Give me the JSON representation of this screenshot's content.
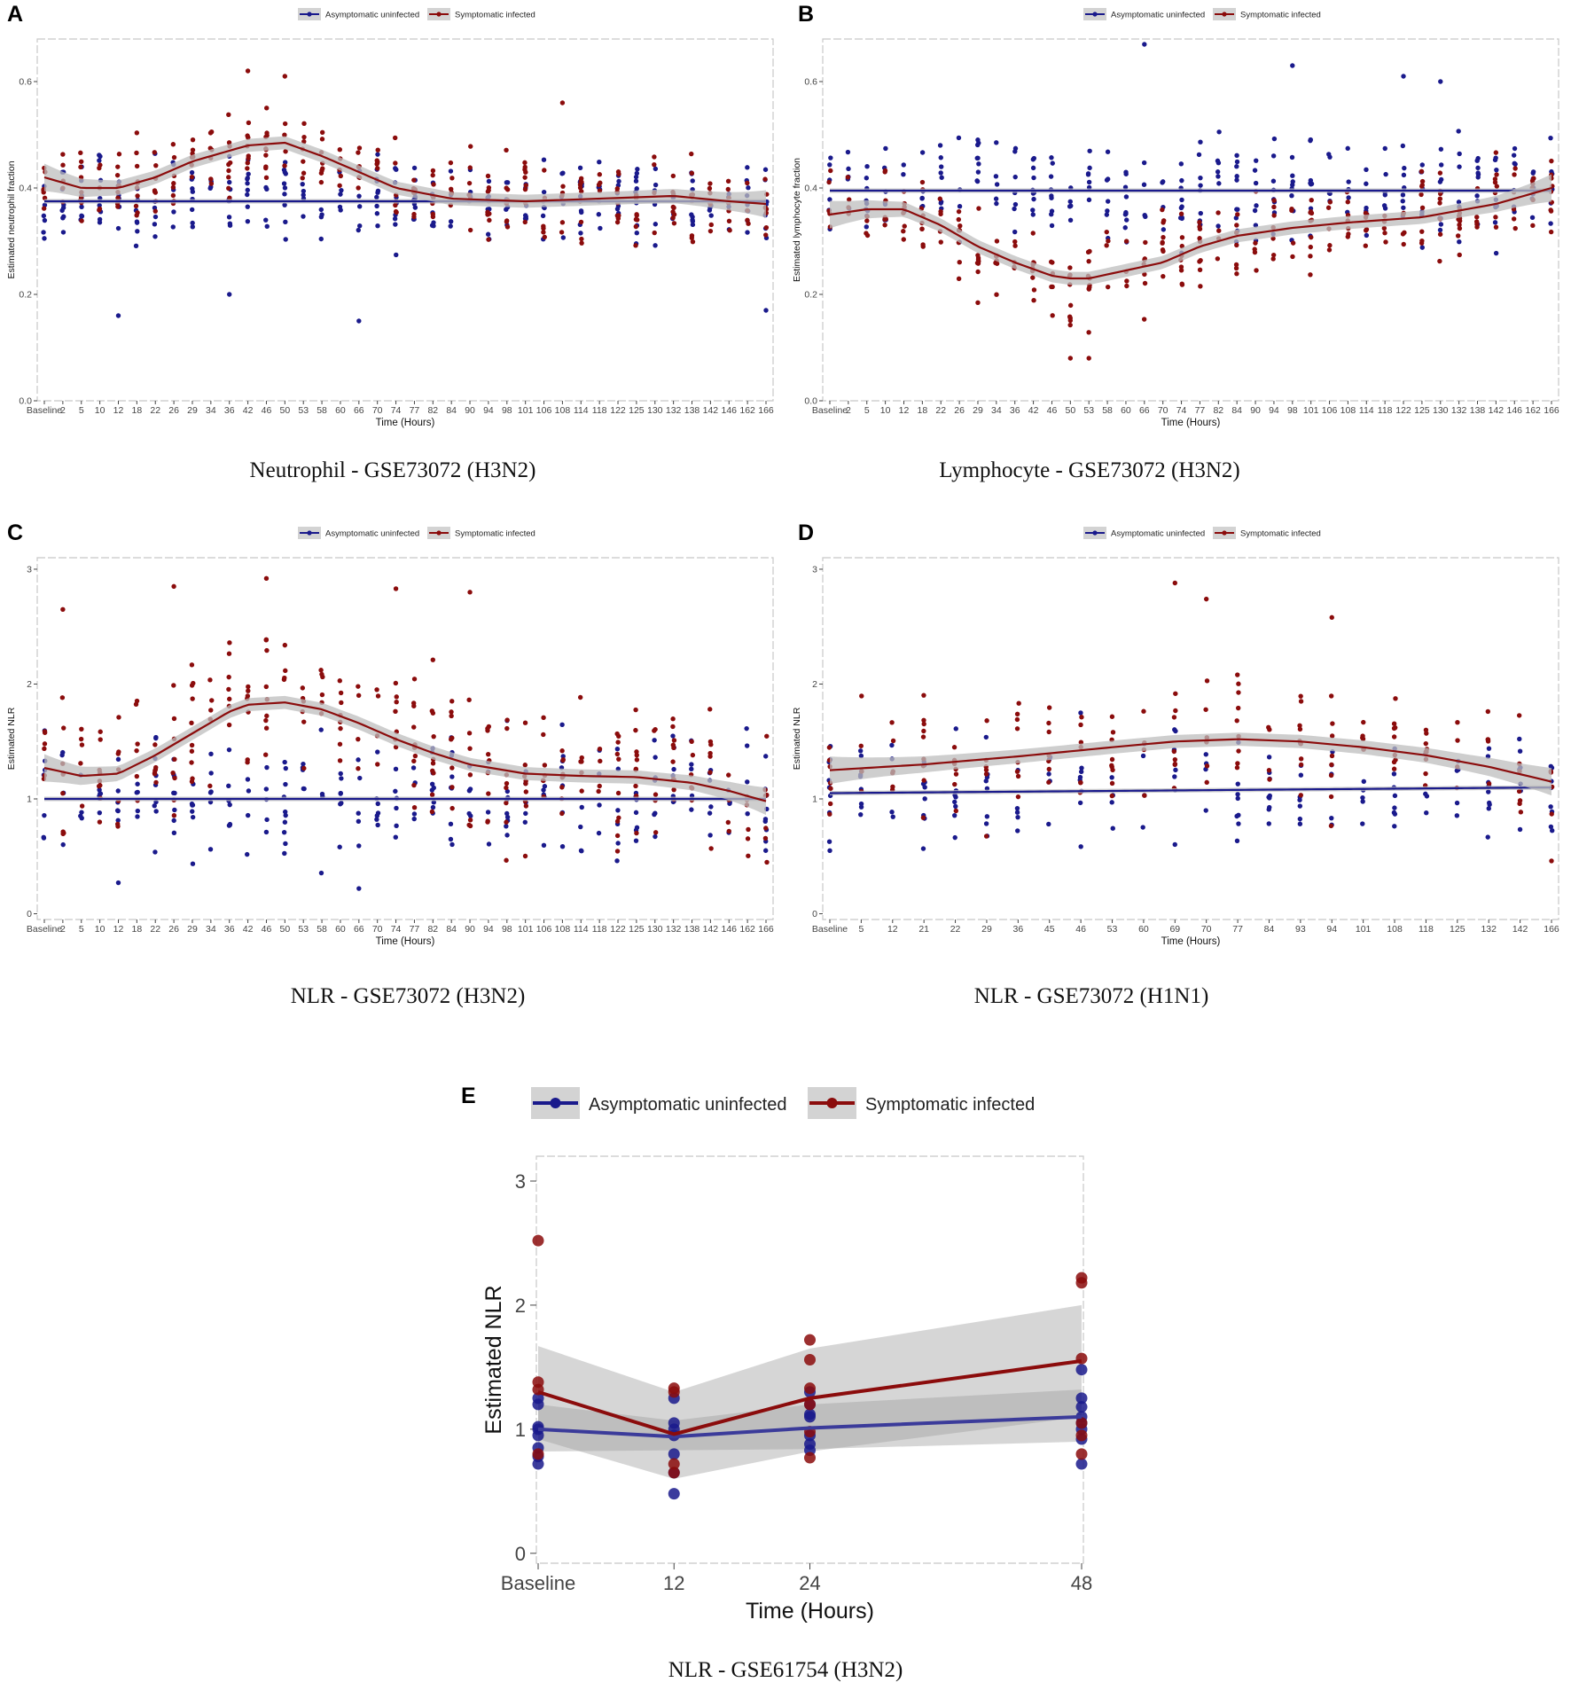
{
  "colors": {
    "asymptomatic": "#1a1a8c",
    "symptomatic": "#8b0c0c",
    "ribbon": "#bdbdbd",
    "frame": "#c8c8c8"
  },
  "legend": {
    "asymptomatic": "Asymptomatic uninfected",
    "symptomatic": "Symptomatic infected"
  },
  "chart_data": [
    {
      "id": "A",
      "letter": "A",
      "type": "scatter",
      "caption": "Neutrophil - GSE73072 (H3N2)",
      "ylabel": "Estimated neutrophil fraction",
      "xlabel": "Time (Hours)",
      "ylim": [
        0,
        0.68
      ],
      "yticks": [
        0.0,
        0.2,
        0.4,
        0.6
      ],
      "ytick_labels": [
        "0.0",
        "0.2",
        "0.4",
        "0.6"
      ],
      "categories": [
        "Baseline",
        "2",
        "5",
        "10",
        "12",
        "18",
        "22",
        "26",
        "29",
        "34",
        "36",
        "42",
        "46",
        "50",
        "53",
        "58",
        "60",
        "66",
        "70",
        "74",
        "77",
        "82",
        "84",
        "90",
        "94",
        "98",
        "101",
        "106",
        "108",
        "114",
        "118",
        "122",
        "125",
        "130",
        "132",
        "138",
        "142",
        "146",
        "162",
        "166"
      ],
      "series": [
        {
          "name": "Asymptomatic uninfected",
          "center": "flat",
          "scatter_spread": 0.06,
          "trend_x": [
            0,
            39
          ],
          "trend_y": [
            0.375,
            0.375
          ]
        },
        {
          "name": "Symptomatic infected",
          "center": "trend",
          "scatter_spread": 0.065,
          "trend_x": [
            0,
            2,
            4,
            6,
            8,
            10,
            11,
            13,
            15,
            17,
            19,
            22,
            26,
            30,
            34,
            37,
            39
          ],
          "trend_y": [
            0.42,
            0.4,
            0.4,
            0.42,
            0.45,
            0.47,
            0.48,
            0.485,
            0.46,
            0.43,
            0.4,
            0.38,
            0.375,
            0.38,
            0.385,
            0.375,
            0.37
          ]
        }
      ],
      "outliers": [
        {
          "x": 4,
          "y": 0.16,
          "s": "a"
        },
        {
          "x": 10,
          "y": 0.2,
          "s": "a"
        },
        {
          "x": 17,
          "y": 0.15,
          "s": "a"
        },
        {
          "x": 11,
          "y": 0.62,
          "s": "s"
        },
        {
          "x": 13,
          "y": 0.61,
          "s": "s"
        },
        {
          "x": 28,
          "y": 0.56,
          "s": "s"
        },
        {
          "x": 39,
          "y": 0.17,
          "s": "a"
        }
      ]
    },
    {
      "id": "B",
      "letter": "B",
      "type": "scatter",
      "caption": "Lymphocyte - GSE73072 (H3N2)",
      "ylabel": "Estimated lymphocyte fraction",
      "xlabel": "Time (Hours)",
      "ylim": [
        0,
        0.68
      ],
      "yticks": [
        0.0,
        0.2,
        0.4,
        0.6
      ],
      "ytick_labels": [
        "0.0",
        "0.2",
        "0.4",
        "0.6"
      ],
      "categories": [
        "Baseline",
        "2",
        "5",
        "10",
        "12",
        "18",
        "22",
        "26",
        "29",
        "34",
        "36",
        "42",
        "46",
        "50",
        "53",
        "58",
        "60",
        "66",
        "70",
        "74",
        "77",
        "82",
        "84",
        "90",
        "94",
        "98",
        "101",
        "106",
        "108",
        "114",
        "118",
        "122",
        "125",
        "130",
        "132",
        "138",
        "142",
        "146",
        "162",
        "166"
      ],
      "series": [
        {
          "name": "Asymptomatic uninfected",
          "center": "flat",
          "scatter_spread": 0.08,
          "trend_x": [
            0,
            39
          ],
          "trend_y": [
            0.395,
            0.395
          ]
        },
        {
          "name": "Symptomatic infected",
          "center": "trend",
          "scatter_spread": 0.07,
          "trend_x": [
            0,
            2,
            4,
            6,
            8,
            10,
            12,
            13,
            14,
            16,
            18,
            20,
            22,
            25,
            28,
            32,
            36,
            39
          ],
          "trend_y": [
            0.35,
            0.36,
            0.36,
            0.33,
            0.29,
            0.26,
            0.235,
            0.23,
            0.23,
            0.245,
            0.26,
            0.29,
            0.31,
            0.325,
            0.335,
            0.345,
            0.37,
            0.4
          ]
        }
      ],
      "outliers": [
        {
          "x": 17,
          "y": 0.67,
          "s": "a"
        },
        {
          "x": 25,
          "y": 0.63,
          "s": "a"
        },
        {
          "x": 31,
          "y": 0.61,
          "s": "a"
        },
        {
          "x": 13,
          "y": 0.08,
          "s": "s"
        },
        {
          "x": 14,
          "y": 0.08,
          "s": "s"
        },
        {
          "x": 33,
          "y": 0.6,
          "s": "a"
        }
      ]
    },
    {
      "id": "C",
      "letter": "C",
      "type": "scatter",
      "caption": "NLR - GSE73072 (H3N2)",
      "ylabel": "Estimated NLR",
      "xlabel": "Time (Hours)",
      "ylim": [
        -0.05,
        3.1
      ],
      "yticks": [
        0,
        1,
        2,
        3
      ],
      "ytick_labels": [
        "0",
        "1",
        "2",
        "3"
      ],
      "categories": [
        "Baseline",
        "2",
        "5",
        "10",
        "12",
        "18",
        "22",
        "26",
        "29",
        "34",
        "36",
        "42",
        "46",
        "50",
        "53",
        "58",
        "60",
        "66",
        "70",
        "74",
        "77",
        "82",
        "84",
        "90",
        "94",
        "98",
        "101",
        "106",
        "108",
        "114",
        "118",
        "122",
        "125",
        "130",
        "132",
        "138",
        "142",
        "146",
        "162",
        "166"
      ],
      "series": [
        {
          "name": "Asymptomatic uninfected",
          "center": "flat",
          "scatter_spread": 0.45,
          "trend_x": [
            0,
            39
          ],
          "trend_y": [
            1.0,
            1.0
          ]
        },
        {
          "name": "Symptomatic infected",
          "center": "trend",
          "scatter_spread": 0.5,
          "trend_x": [
            0,
            2,
            4,
            6,
            8,
            10,
            11,
            13,
            15,
            17,
            19,
            21,
            23,
            26,
            29,
            32,
            35,
            37,
            39
          ],
          "trend_y": [
            1.27,
            1.2,
            1.22,
            1.38,
            1.57,
            1.76,
            1.82,
            1.84,
            1.78,
            1.66,
            1.52,
            1.4,
            1.3,
            1.22,
            1.2,
            1.19,
            1.14,
            1.07,
            0.98
          ]
        }
      ],
      "outliers": [
        {
          "x": 7,
          "y": 2.85,
          "s": "s"
        },
        {
          "x": 12,
          "y": 2.92,
          "s": "s"
        },
        {
          "x": 19,
          "y": 2.83,
          "s": "s"
        },
        {
          "x": 23,
          "y": 2.8,
          "s": "s"
        },
        {
          "x": 1,
          "y": 2.65,
          "s": "s"
        },
        {
          "x": 4,
          "y": 0.27,
          "s": "a"
        },
        {
          "x": 17,
          "y": 0.22,
          "s": "a"
        }
      ]
    },
    {
      "id": "D",
      "letter": "D",
      "type": "scatter",
      "caption": "NLR - GSE73072 (H1N1)",
      "ylabel": "Estimated NLR",
      "xlabel": "Time (Hours)",
      "ylim": [
        -0.05,
        3.1
      ],
      "yticks": [
        0,
        1,
        2,
        3
      ],
      "ytick_labels": [
        "0",
        "1",
        "2",
        "3"
      ],
      "categories": [
        "Baseline",
        "5",
        "12",
        "21",
        "22",
        "29",
        "36",
        "45",
        "46",
        "53",
        "60",
        "69",
        "70",
        "77",
        "84",
        "93",
        "94",
        "101",
        "108",
        "118",
        "125",
        "132",
        "142",
        "166"
      ],
      "series": [
        {
          "name": "Asymptomatic uninfected",
          "center": "flat",
          "scatter_spread": 0.4,
          "trend_x": [
            0,
            23
          ],
          "trend_y": [
            1.05,
            1.1
          ]
        },
        {
          "name": "Symptomatic infected",
          "center": "trend",
          "scatter_spread": 0.45,
          "trend_x": [
            0,
            3,
            6,
            9,
            11,
            13,
            15,
            17,
            19,
            21,
            23
          ],
          "trend_y": [
            1.25,
            1.3,
            1.37,
            1.45,
            1.5,
            1.52,
            1.5,
            1.45,
            1.38,
            1.28,
            1.15
          ]
        }
      ],
      "outliers": [
        {
          "x": 11,
          "y": 2.88,
          "s": "s"
        },
        {
          "x": 12,
          "y": 2.74,
          "s": "s"
        },
        {
          "x": 16,
          "y": 2.58,
          "s": "s"
        },
        {
          "x": 23,
          "y": 0.46,
          "s": "s"
        },
        {
          "x": 0,
          "y": 0.55,
          "s": "a"
        }
      ]
    },
    {
      "id": "E",
      "letter": "E",
      "type": "line",
      "caption": "NLR - GSE61754 (H3N2)",
      "ylabel": "Estimated NLR",
      "xlabel": "Time (Hours)",
      "ylim": [
        -0.08,
        3.2
      ],
      "yticks": [
        0,
        1,
        2,
        3
      ],
      "ytick_labels": [
        "0",
        "1",
        "2",
        "3"
      ],
      "categories": [
        "Baseline",
        "12",
        "24",
        "48"
      ],
      "series": [
        {
          "name": "Asymptomatic uninfected",
          "values": [
            1.0,
            0.94,
            1.01,
            1.1
          ],
          "band_lo": [
            0.82,
            0.83,
            0.84,
            0.9
          ],
          "band_hi": [
            1.2,
            1.07,
            1.2,
            1.32
          ],
          "points": [
            [
              0.72,
              0.78,
              0.85,
              0.95,
              1.0,
              1.02,
              1.2,
              1.25
            ],
            [
              0.48,
              0.65,
              0.8,
              0.95,
              1.0,
              1.05,
              1.25
            ],
            [
              0.83,
              0.88,
              0.95,
              1.1,
              1.12,
              1.2,
              1.3
            ],
            [
              0.72,
              0.92,
              1.0,
              1.05,
              1.1,
              1.18,
              1.25,
              1.48
            ]
          ]
        },
        {
          "name": "Symptomatic infected",
          "values": [
            1.3,
            0.96,
            1.25,
            1.55
          ],
          "band_lo": [
            0.92,
            0.6,
            0.82,
            1.1
          ],
          "band_hi": [
            1.67,
            1.3,
            1.65,
            2.0
          ],
          "points": [
            [
              2.52,
              1.38,
              1.32,
              0.8
            ],
            [
              1.33,
              1.3,
              0.72,
              0.65
            ],
            [
              1.72,
              1.56,
              1.33,
              1.2,
              0.98,
              0.77
            ],
            [
              2.22,
              2.18,
              1.57,
              1.05,
              0.95,
              0.8
            ]
          ]
        }
      ]
    }
  ]
}
